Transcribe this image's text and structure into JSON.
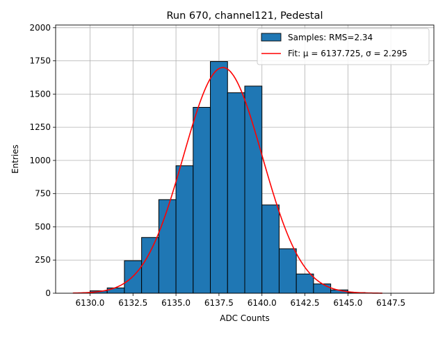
{
  "chart_data": {
    "type": "bar",
    "title": "Run 670, channel121, Pedestal",
    "xlabel": "ADC Counts",
    "ylabel": "Entries",
    "xlim": [
      6128.0,
      6150.0
    ],
    "ylim": [
      0,
      2020
    ],
    "x_ticks": [
      6130.0,
      6132.5,
      6135.0,
      6137.5,
      6140.0,
      6142.5,
      6145.0,
      6147.5
    ],
    "x_tick_labels": [
      "6130.0",
      "6132.5",
      "6135.0",
      "6137.5",
      "6140.0",
      "6142.5",
      "6145.0",
      "6147.5"
    ],
    "y_ticks": [
      0,
      250,
      500,
      750,
      1000,
      1250,
      1500,
      1750,
      2000
    ],
    "y_tick_labels": [
      "0",
      "250",
      "500",
      "750",
      "1000",
      "1250",
      "1500",
      "1750",
      "2000"
    ],
    "grid": true,
    "legend_position": "top-right",
    "histogram": {
      "name": "Samples: RMS=2.34",
      "color": "#1f77b4",
      "edge_color": "#000000",
      "bins": [
        {
          "x0": 6130,
          "x1": 6131,
          "value": 18
        },
        {
          "x0": 6131,
          "x1": 6132,
          "value": 40
        },
        {
          "x0": 6132,
          "x1": 6133,
          "value": 245
        },
        {
          "x0": 6133,
          "x1": 6134,
          "value": 420
        },
        {
          "x0": 6134,
          "x1": 6135,
          "value": 705
        },
        {
          "x0": 6135,
          "x1": 6136,
          "value": 960
        },
        {
          "x0": 6136,
          "x1": 6137,
          "value": 1400
        },
        {
          "x0": 6137,
          "x1": 6138,
          "value": 1745
        },
        {
          "x0": 6138,
          "x1": 6139,
          "value": 1510
        },
        {
          "x0": 6139,
          "x1": 6140,
          "value": 1560
        },
        {
          "x0": 6140,
          "x1": 6141,
          "value": 665
        },
        {
          "x0": 6141,
          "x1": 6142,
          "value": 335
        },
        {
          "x0": 6142,
          "x1": 6143,
          "value": 145
        },
        {
          "x0": 6143,
          "x1": 6144,
          "value": 70
        },
        {
          "x0": 6144,
          "x1": 6145,
          "value": 25
        },
        {
          "x0": 6145,
          "x1": 6146,
          "value": 5
        }
      ]
    },
    "fit": {
      "name": "Fit: μ = 6137.725, σ = 2.295",
      "color": "#ff0000",
      "mu": 6137.725,
      "sigma": 2.295,
      "amplitude": 1700,
      "x_range": [
        6129.0,
        6147.0
      ]
    }
  }
}
